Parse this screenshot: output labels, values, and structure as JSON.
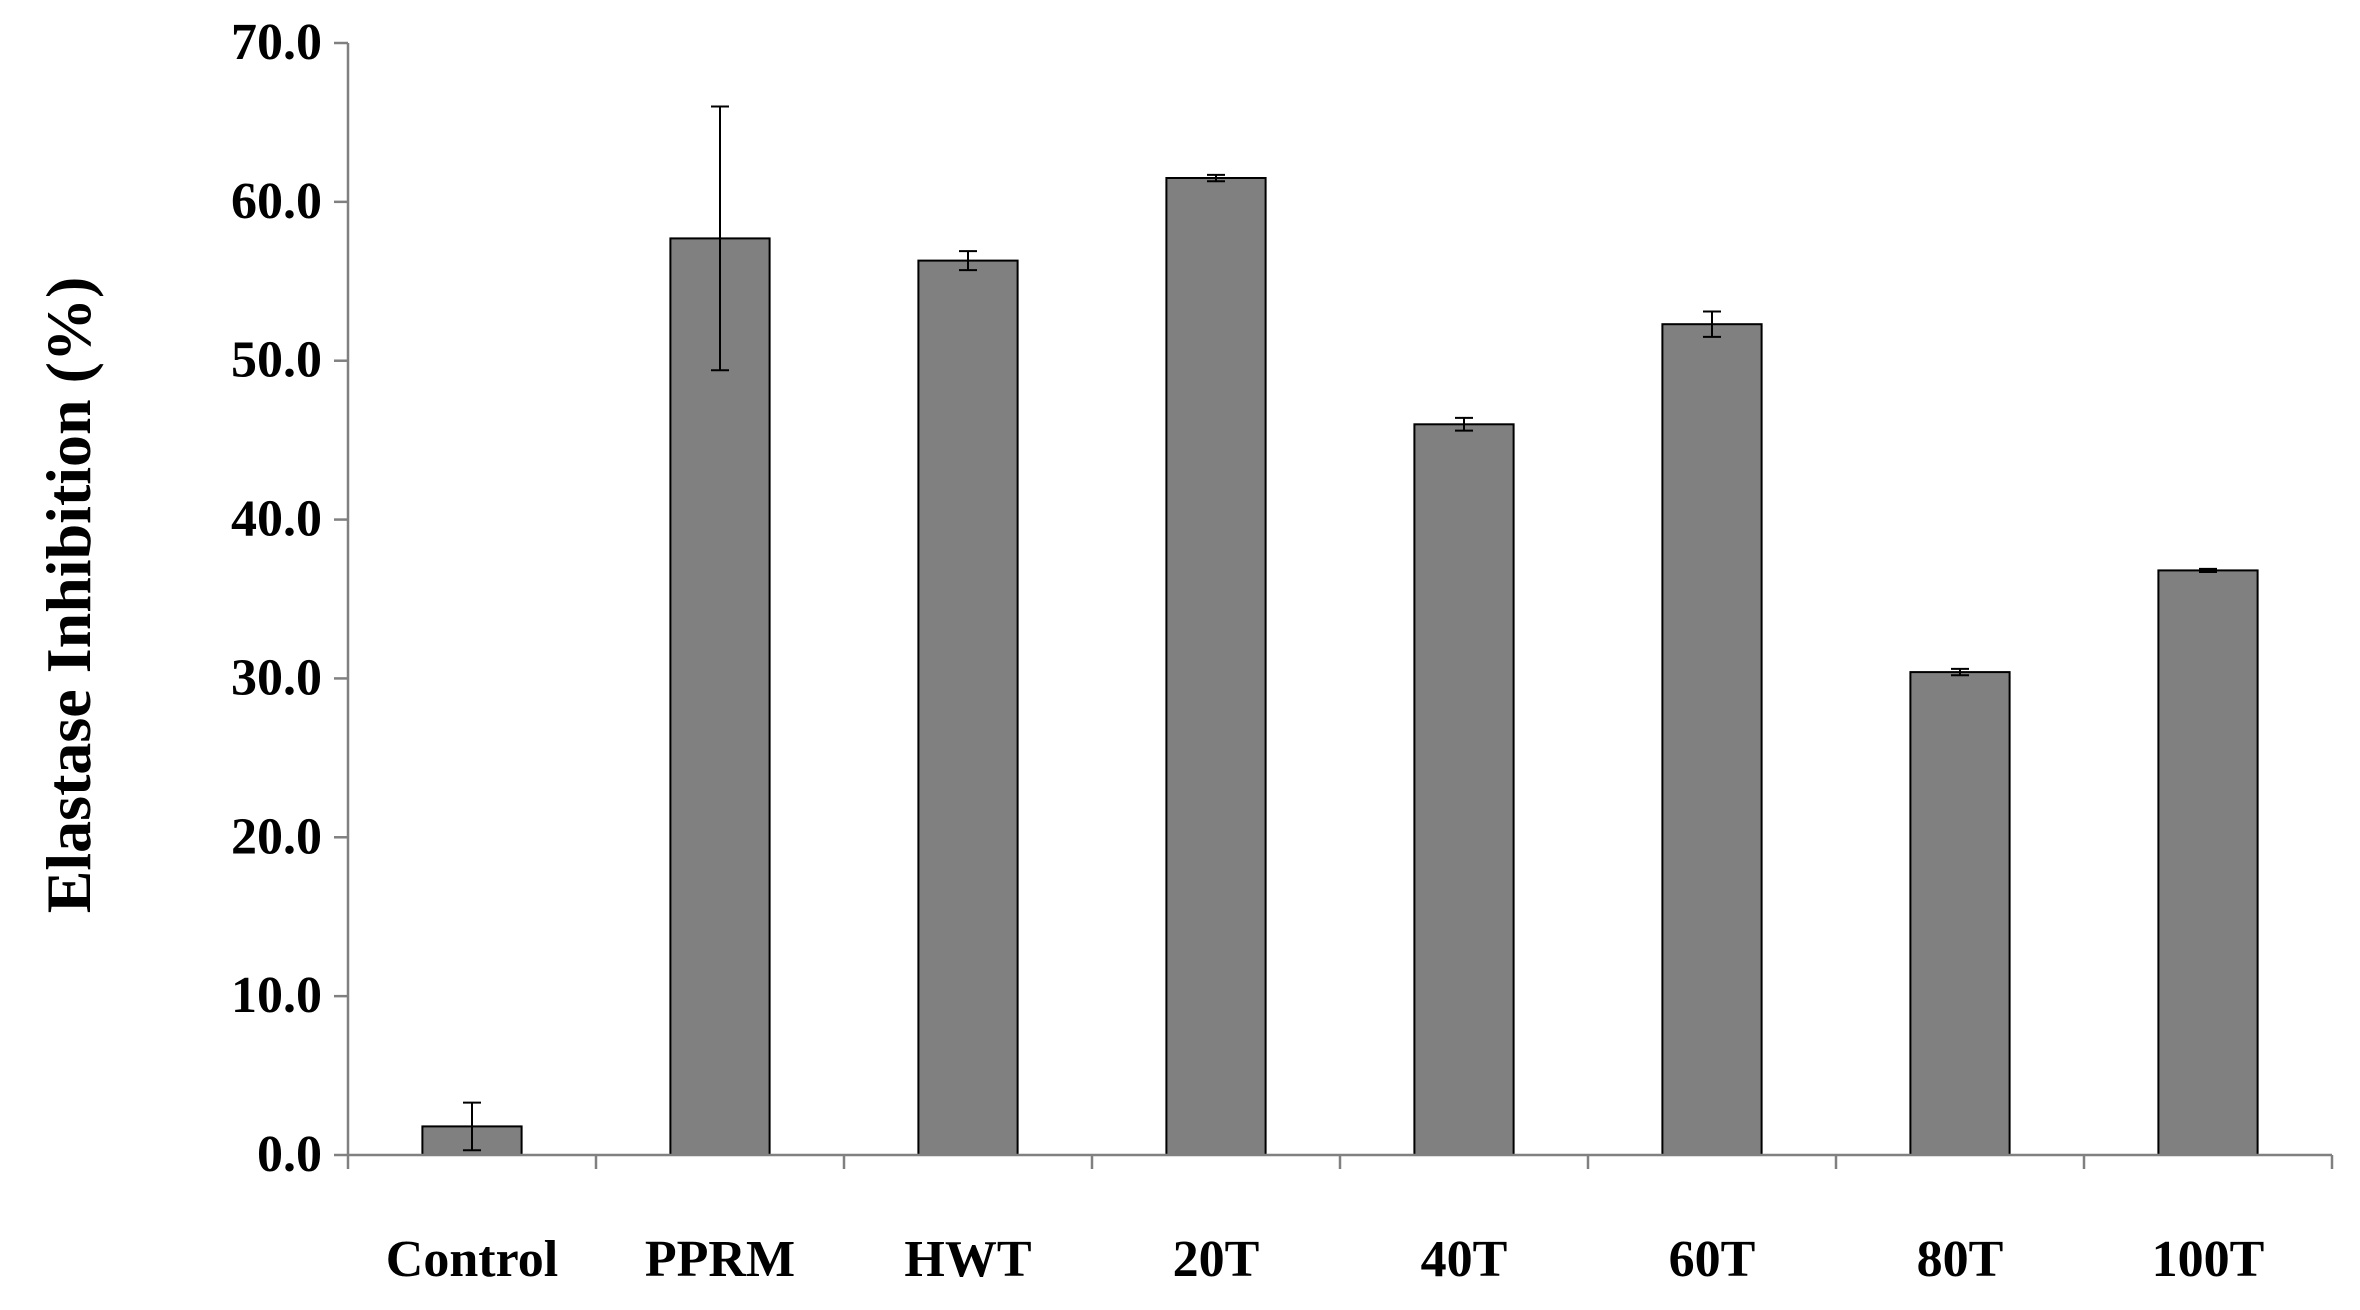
{
  "chart_data": {
    "type": "bar",
    "title": "",
    "xlabel": "",
    "ylabel": "Elastase Inhibition (%)",
    "ylim": [
      0,
      70
    ],
    "ytick_step": 10,
    "ytick_labels": [
      "0.0",
      "10.0",
      "20.0",
      "30.0",
      "40.0",
      "50.0",
      "60.0",
      "70.0"
    ],
    "categories": [
      "Control",
      "PPRM",
      "HWT",
      "20T",
      "40T",
      "60T",
      "80T",
      "100T"
    ],
    "series": [
      {
        "values": [
          1.8,
          57.7,
          56.3,
          61.5,
          46.0,
          52.3,
          30.4,
          36.8
        ],
        "errors": [
          1.5,
          8.3,
          0.6,
          0.2,
          0.4,
          0.8,
          0.2,
          0.1
        ]
      }
    ],
    "grid": false,
    "legend": "none",
    "colors": {
      "bar_fill": "#808080",
      "bar_stroke": "#000000",
      "axis": "#808080",
      "error_bar": "#000000"
    }
  }
}
